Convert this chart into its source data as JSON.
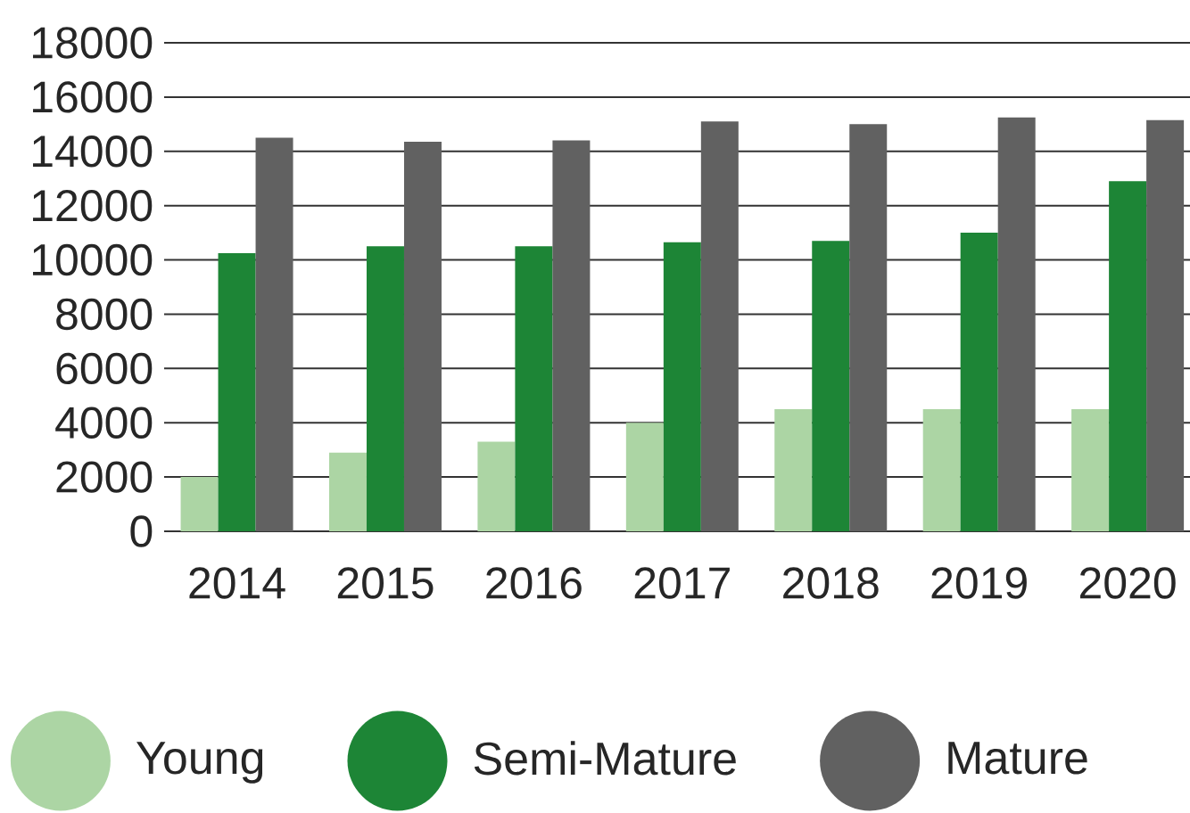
{
  "chart_data": {
    "type": "bar",
    "categories": [
      "2014",
      "2015",
      "2016",
      "2017",
      "2018",
      "2019",
      "2020"
    ],
    "series": [
      {
        "name": "Young",
        "color": "#acd5a4",
        "values": [
          2000,
          2900,
          3300,
          4000,
          4500,
          4500,
          4500
        ]
      },
      {
        "name": "Semi-Mature",
        "color": "#1d8536",
        "values": [
          10250,
          10500,
          10500,
          10650,
          10700,
          11000,
          12900
        ]
      },
      {
        "name": "Mature",
        "color": "#616161",
        "values": [
          14500,
          14350,
          14400,
          15100,
          15000,
          15250,
          15150
        ]
      }
    ],
    "ylim": [
      0,
      18000
    ],
    "yticks": [
      0,
      2000,
      4000,
      6000,
      8000,
      10000,
      12000,
      14000,
      16000,
      18000
    ],
    "grid": "y",
    "legend": "bottom"
  }
}
